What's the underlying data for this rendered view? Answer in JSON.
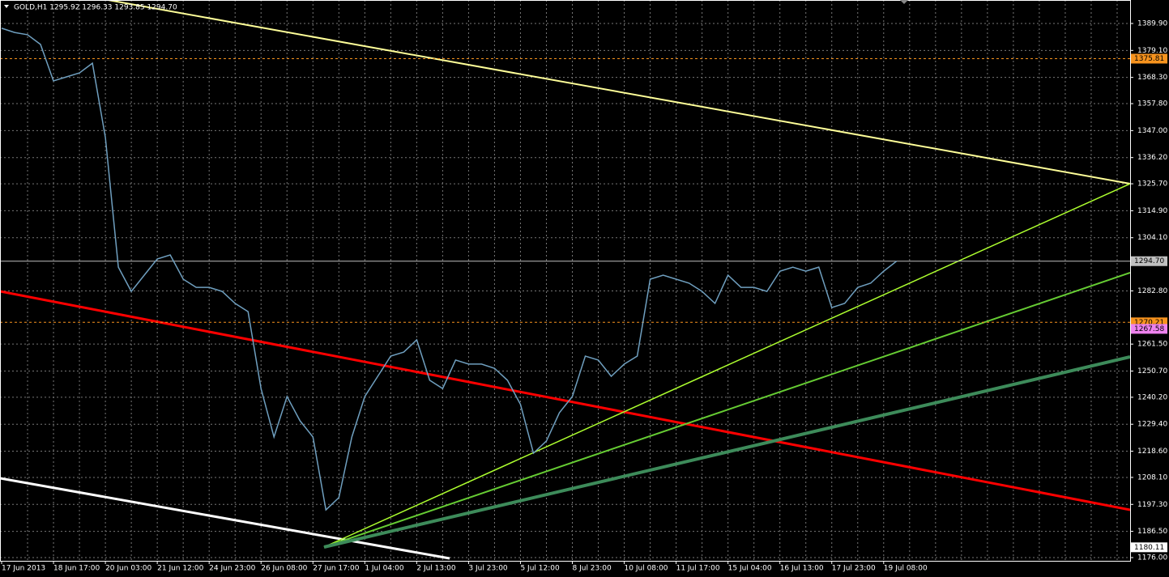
{
  "chart_data": {
    "type": "line",
    "title": "GOLD,H1  1295.92 1296.33 1293.85 1294.70",
    "categories": [
      "17 Jun 2013",
      null,
      null,
      null,
      "18 Jun 17:00",
      null,
      null,
      null,
      "20 Jun 03:00",
      null,
      null,
      null,
      "21 Jun 12:00",
      null,
      null,
      null,
      "24 Jun 23:00",
      null,
      null,
      null,
      "26 Jun 08:00",
      null,
      null,
      null,
      "27 Jun 17:00",
      null,
      null,
      null,
      "1 Jul 04:00",
      null,
      null,
      null,
      "2 Jul 13:00",
      null,
      null,
      null,
      "3 Jul 23:00",
      null,
      null,
      null,
      "5 Jul 12:00",
      null,
      null,
      null,
      "8 Jul 23:00",
      null,
      null,
      null,
      "10 Jul 08:00",
      null,
      null,
      null,
      "11 Jul 17:00",
      null,
      null,
      null,
      "15 Jul 04:00",
      null,
      null,
      null,
      "16 Jul 13:00",
      null,
      null,
      null,
      "17 Jul 23:00",
      null,
      null,
      null,
      "19 Jul 08:00",
      null,
      null,
      null,
      null,
      null,
      null,
      null,
      null,
      null,
      null,
      null,
      null,
      null,
      null,
      null,
      null,
      null,
      null,
      null
    ],
    "series": [
      {
        "name": "GOLD,H1",
        "color": "#6f9fbf",
        "values": [
          1388.0,
          1386.3,
          1385.4,
          1381.5,
          1366.9,
          1368.5,
          1370.1,
          1374.0,
          1344.2,
          1292.3,
          1282.6,
          1289.1,
          1295.6,
          1297.2,
          1287.5,
          1284.2,
          1284.2,
          1282.6,
          1277.8,
          1274.5,
          1243.7,
          1224.3,
          1240.5,
          1230.8,
          1224.3,
          1195.1,
          1200.0,
          1224.3,
          1240.5,
          1248.6,
          1256.7,
          1258.3,
          1263.2,
          1247.0,
          1243.7,
          1255.1,
          1253.5,
          1253.5,
          1251.8,
          1247.0,
          1237.3,
          1217.8,
          1222.7,
          1234.0,
          1240.5,
          1256.7,
          1255.1,
          1248.6,
          1253.5,
          1256.7,
          1287.5,
          1289.1,
          1287.5,
          1285.9,
          1282.6,
          1277.8,
          1289.1,
          1284.2,
          1284.2,
          1282.6,
          1290.7,
          1292.3,
          1290.7,
          1292.3,
          1276.1,
          1277.8,
          1284.2,
          1285.9,
          1290.7,
          1294.7,
          null,
          null,
          null,
          null,
          null,
          null,
          null,
          null,
          null,
          null,
          null,
          null,
          null,
          null,
          null,
          null,
          null,
          null
        ]
      }
    ],
    "ylim": [
      1174.7,
      1399.3
    ],
    "yticks": [
      {
        "value": 1389.9,
        "label": "1389.90"
      },
      {
        "value": 1379.1,
        "label": "1379.10"
      },
      {
        "value": 1368.3,
        "label": "1368.30"
      },
      {
        "value": 1357.8,
        "label": "1357.80"
      },
      {
        "value": 1347,
        "label": "1347.00"
      },
      {
        "value": 1336.2,
        "label": "1336.20"
      },
      {
        "value": 1325.7,
        "label": "1325.70"
      },
      {
        "value": 1314.9,
        "label": "1314.90"
      },
      {
        "value": 1304.1,
        "label": "1304.10"
      },
      {
        "value": 1282.8,
        "label": "1282.80"
      },
      {
        "value": 1261.5,
        "label": "1261.50"
      },
      {
        "value": 1250.7,
        "label": "1250.70"
      },
      {
        "value": 1240.2,
        "label": "1240.20"
      },
      {
        "value": 1229.4,
        "label": "1229.40"
      },
      {
        "value": 1218.6,
        "label": "1218.60"
      },
      {
        "value": 1208.1,
        "label": "1208.10"
      },
      {
        "value": 1197.3,
        "label": "1197.30"
      },
      {
        "value": 1186.5,
        "label": "1186.50"
      },
      {
        "value": 1176,
        "label": "1176.00"
      }
    ],
    "price_levels": [
      {
        "value": 1375.81,
        "color": "#f7931e",
        "line": "dotted"
      },
      {
        "value": 1294.7,
        "label": "1294.70",
        "color": "#c0c0c0",
        "line": "solid"
      },
      {
        "value": 1270.21,
        "color": "#f7931e",
        "line": "dotted"
      },
      {
        "value": 1267.58,
        "color": "#ee82ee",
        "line": "none"
      },
      {
        "value": 1180.11,
        "color": "#ffffff",
        "line": "none"
      }
    ],
    "grid": true
  }
}
